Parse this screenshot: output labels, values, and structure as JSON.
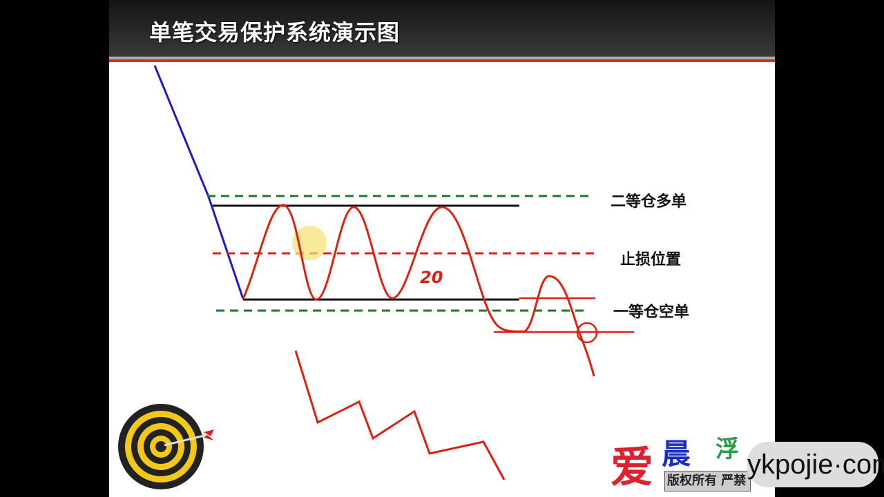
{
  "slide": {
    "title": "单笔交易保护系统演示图",
    "labels": {
      "upper": "二等仓多单",
      "middle": "止损位置",
      "lower": "一等仓空单"
    },
    "annotation": "20"
  },
  "logo": {
    "text": "爱晨浮",
    "copyright": "版权所有 严禁"
  },
  "watermark": "ykpojie·com",
  "colors": {
    "trend": "#1a1acc",
    "wave": "#e0200e",
    "dashed_green": "#1a7a2a",
    "dashed_red": "#e0200e",
    "accent_band": "#d7321f"
  }
}
